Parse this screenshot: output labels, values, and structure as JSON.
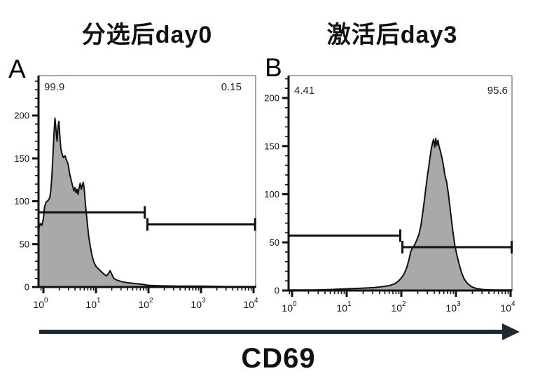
{
  "figure": {
    "x_axis_title": "CD69",
    "arrow_color": "#1e2935",
    "background": "#ffffff",
    "histogram_fill": "#a9a9a9",
    "histogram_stroke": "#111111",
    "axis_color": "#111111",
    "box_border_color": "#888888",
    "gate_color": "#111111"
  },
  "chart_data": [
    {
      "type": "area",
      "panel_label": "A",
      "title": "分选后day0",
      "xlabel": "CD69",
      "x_axis": {
        "scale": "log10",
        "base": "10",
        "exponents": [
          0,
          1,
          2,
          3,
          4
        ],
        "xlim_log": [
          -0.09,
          4.04
        ]
      },
      "y_axis": {
        "ticks": [
          0,
          50,
          100,
          150,
          200
        ],
        "minor_step": 10,
        "ylim": [
          0,
          246
        ]
      },
      "legend": "none",
      "grid": false,
      "curve_log_count": [
        [
          -0.09,
          68
        ],
        [
          -0.06,
          74
        ],
        [
          -0.03,
          72
        ],
        [
          0.0,
          80
        ],
        [
          0.02,
          93
        ],
        [
          0.05,
          99
        ],
        [
          0.09,
          101
        ],
        [
          0.12,
          104
        ],
        [
          0.14,
          112
        ],
        [
          0.16,
          128
        ],
        [
          0.18,
          152
        ],
        [
          0.2,
          178
        ],
        [
          0.22,
          197
        ],
        [
          0.24,
          183
        ],
        [
          0.26,
          170
        ],
        [
          0.28,
          188
        ],
        [
          0.295,
          193
        ],
        [
          0.31,
          178
        ],
        [
          0.33,
          162
        ],
        [
          0.35,
          156
        ],
        [
          0.38,
          151
        ],
        [
          0.41,
          153
        ],
        [
          0.44,
          148
        ],
        [
          0.47,
          143
        ],
        [
          0.5,
          132
        ],
        [
          0.53,
          124
        ],
        [
          0.56,
          117
        ],
        [
          0.58,
          112
        ],
        [
          0.6,
          116
        ],
        [
          0.62,
          110
        ],
        [
          0.64,
          114
        ],
        [
          0.66,
          108
        ],
        [
          0.68,
          116
        ],
        [
          0.7,
          121
        ],
        [
          0.72,
          114
        ],
        [
          0.74,
          119
        ],
        [
          0.76,
          122
        ],
        [
          0.78,
          112
        ],
        [
          0.8,
          96
        ],
        [
          0.82,
          84
        ],
        [
          0.84,
          72
        ],
        [
          0.86,
          60
        ],
        [
          0.89,
          48
        ],
        [
          0.92,
          38
        ],
        [
          0.96,
          29
        ],
        [
          1.0,
          24
        ],
        [
          1.05,
          21
        ],
        [
          1.1,
          18
        ],
        [
          1.15,
          15
        ],
        [
          1.2,
          13
        ],
        [
          1.24,
          16
        ],
        [
          1.27,
          19
        ],
        [
          1.3,
          15
        ],
        [
          1.34,
          10
        ],
        [
          1.4,
          8
        ],
        [
          1.5,
          6
        ],
        [
          1.6,
          5
        ],
        [
          1.75,
          4
        ],
        [
          1.9,
          3
        ],
        [
          2.0,
          2
        ],
        [
          2.2,
          1.5
        ],
        [
          2.6,
          1
        ],
        [
          3.0,
          1
        ],
        [
          3.5,
          0.5
        ],
        [
          4.04,
          0.5
        ]
      ],
      "gates": [
        {
          "label": "99.9",
          "y_count": 87,
          "from_log": -0.09,
          "to_log": 1.93,
          "caps": [
            "right"
          ]
        },
        {
          "label": "0.15",
          "y_count": 73,
          "from_log": 1.98,
          "to_log": 4.03,
          "caps": [
            "left",
            "right"
          ]
        }
      ]
    },
    {
      "type": "area",
      "panel_label": "B",
      "title": "激活后day3",
      "xlabel": "CD69",
      "x_axis": {
        "scale": "log10",
        "base": "10",
        "exponents": [
          0,
          1,
          2,
          3,
          4
        ],
        "xlim_log": [
          -0.06,
          4.02
        ]
      },
      "y_axis": {
        "ticks": [
          0,
          50,
          100,
          150,
          200
        ],
        "minor_step": 10,
        "ylim": [
          0,
          223
        ]
      },
      "legend": "none",
      "grid": false,
      "curve_log_count": [
        [
          -0.06,
          0.5
        ],
        [
          0.4,
          0.5
        ],
        [
          0.7,
          1
        ],
        [
          0.9,
          1.5
        ],
        [
          1.1,
          2
        ],
        [
          1.3,
          2.5
        ],
        [
          1.5,
          3
        ],
        [
          1.65,
          4
        ],
        [
          1.78,
          5
        ],
        [
          1.88,
          7
        ],
        [
          1.95,
          10
        ],
        [
          2.0,
          13
        ],
        [
          2.05,
          17
        ],
        [
          2.1,
          24
        ],
        [
          2.14,
          32
        ],
        [
          2.17,
          40
        ],
        [
          2.2,
          44
        ],
        [
          2.24,
          47
        ],
        [
          2.28,
          52
        ],
        [
          2.32,
          58
        ],
        [
          2.36,
          68
        ],
        [
          2.4,
          84
        ],
        [
          2.44,
          102
        ],
        [
          2.48,
          120
        ],
        [
          2.52,
          136
        ],
        [
          2.55,
          148
        ],
        [
          2.57,
          153
        ],
        [
          2.59,
          157
        ],
        [
          2.61,
          149
        ],
        [
          2.63,
          158
        ],
        [
          2.65,
          151
        ],
        [
          2.67,
          156
        ],
        [
          2.69,
          150
        ],
        [
          2.71,
          146
        ],
        [
          2.74,
          139
        ],
        [
          2.77,
          130
        ],
        [
          2.8,
          119
        ],
        [
          2.83,
          113
        ],
        [
          2.86,
          101
        ],
        [
          2.9,
          82
        ],
        [
          2.94,
          63
        ],
        [
          2.98,
          47
        ],
        [
          3.02,
          36
        ],
        [
          3.06,
          27
        ],
        [
          3.1,
          19
        ],
        [
          3.15,
          12
        ],
        [
          3.2,
          8
        ],
        [
          3.28,
          4
        ],
        [
          3.38,
          2
        ],
        [
          3.5,
          1
        ],
        [
          3.7,
          0.5
        ],
        [
          4.02,
          0.5
        ]
      ],
      "gates": [
        {
          "label": "4.41",
          "y_count": 57,
          "from_log": -0.06,
          "to_log": 1.98,
          "caps": [
            "right"
          ]
        },
        {
          "label": "95.6",
          "y_count": 45,
          "from_log": 2.02,
          "to_log": 4.02,
          "caps": [
            "left",
            "right"
          ]
        }
      ]
    }
  ]
}
